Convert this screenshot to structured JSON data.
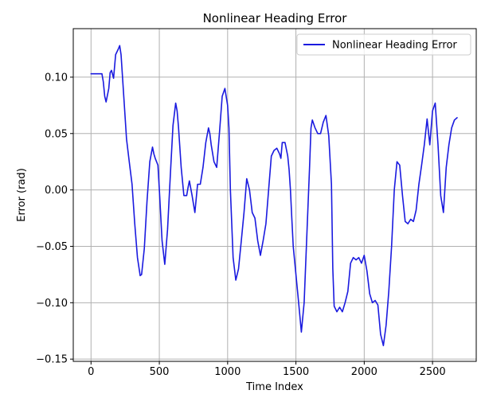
{
  "chart_data": {
    "type": "line",
    "title": "Nonlinear Heading Error",
    "xlabel": "Time Index",
    "ylabel": "Error (rad)",
    "xlim": [
      -130,
      2820
    ],
    "ylim": [
      -0.152,
      0.143
    ],
    "xticks": [
      0,
      500,
      1000,
      1500,
      2000,
      2500
    ],
    "xtick_labels": [
      "0",
      "500",
      "1000",
      "1500",
      "2000",
      "2500"
    ],
    "yticks": [
      0.1,
      0.05,
      0.0,
      -0.05,
      -0.1,
      -0.15
    ],
    "ytick_labels": [
      "0.10",
      "0.05",
      "0.00",
      "−0.05",
      "−0.10",
      "−0.15"
    ],
    "grid": true,
    "legend_position": "top-right",
    "series": [
      {
        "name": "Nonlinear Heading Error",
        "color": "#1a1adf",
        "x": [
          0,
          80,
          90,
          100,
          110,
          130,
          140,
          150,
          165,
          180,
          200,
          210,
          220,
          240,
          260,
          280,
          300,
          320,
          340,
          360,
          370,
          390,
          410,
          430,
          450,
          460,
          470,
          490,
          500,
          520,
          540,
          560,
          580,
          600,
          620,
          630,
          640,
          660,
          680,
          700,
          710,
          720,
          740,
          760,
          780,
          800,
          820,
          840,
          860,
          870,
          880,
          900,
          920,
          940,
          960,
          980,
          1000,
          1010,
          1020,
          1040,
          1060,
          1080,
          1100,
          1120,
          1140,
          1160,
          1180,
          1200,
          1220,
          1240,
          1260,
          1280,
          1300,
          1320,
          1340,
          1360,
          1380,
          1390,
          1400,
          1420,
          1440,
          1450,
          1460,
          1470,
          1480,
          1500,
          1520,
          1540,
          1560,
          1580,
          1600,
          1610,
          1620,
          1640,
          1660,
          1680,
          1700,
          1720,
          1740,
          1760,
          1770,
          1780,
          1800,
          1820,
          1840,
          1860,
          1880,
          1900,
          1920,
          1940,
          1960,
          1980,
          2000,
          2020,
          2040,
          2060,
          2080,
          2100,
          2120,
          2140,
          2160,
          2180,
          2200,
          2220,
          2240,
          2260,
          2280,
          2300,
          2320,
          2340,
          2360,
          2380,
          2400,
          2420,
          2440,
          2460,
          2480,
          2500,
          2520,
          2540,
          2560,
          2580,
          2600,
          2620,
          2640,
          2660,
          2680
        ],
        "values": [
          0.103,
          0.103,
          0.096,
          0.083,
          0.078,
          0.09,
          0.104,
          0.106,
          0.099,
          0.12,
          0.125,
          0.128,
          0.12,
          0.082,
          0.045,
          0.025,
          0.005,
          -0.03,
          -0.06,
          -0.076,
          -0.075,
          -0.052,
          -0.01,
          0.025,
          0.038,
          0.032,
          0.028,
          0.022,
          0.0,
          -0.045,
          -0.066,
          -0.035,
          0.012,
          0.057,
          0.077,
          0.07,
          0.056,
          0.02,
          -0.005,
          -0.005,
          0.002,
          0.008,
          -0.005,
          -0.02,
          0.005,
          0.005,
          0.02,
          0.042,
          0.055,
          0.05,
          0.04,
          0.025,
          0.02,
          0.05,
          0.083,
          0.09,
          0.075,
          0.055,
          0.0,
          -0.06,
          -0.08,
          -0.07,
          -0.045,
          -0.02,
          0.01,
          0.0,
          -0.02,
          -0.025,
          -0.045,
          -0.058,
          -0.045,
          -0.03,
          0.0,
          0.03,
          0.035,
          0.037,
          0.032,
          0.028,
          0.042,
          0.042,
          0.03,
          0.018,
          0.0,
          -0.025,
          -0.05,
          -0.075,
          -0.1,
          -0.126,
          -0.1,
          -0.04,
          0.02,
          0.055,
          0.062,
          0.055,
          0.05,
          0.05,
          0.06,
          0.066,
          0.048,
          0.005,
          -0.07,
          -0.103,
          -0.108,
          -0.104,
          -0.108,
          -0.1,
          -0.09,
          -0.065,
          -0.06,
          -0.062,
          -0.06,
          -0.065,
          -0.058,
          -0.072,
          -0.092,
          -0.1,
          -0.098,
          -0.102,
          -0.128,
          -0.138,
          -0.12,
          -0.09,
          -0.05,
          0.0,
          0.025,
          0.022,
          -0.005,
          -0.028,
          -0.03,
          -0.026,
          -0.028,
          -0.018,
          0.005,
          0.022,
          0.04,
          0.063,
          0.04,
          0.07,
          0.077,
          0.04,
          -0.005,
          -0.02,
          0.02,
          0.04,
          0.055,
          0.062,
          0.064
        ]
      }
    ]
  }
}
